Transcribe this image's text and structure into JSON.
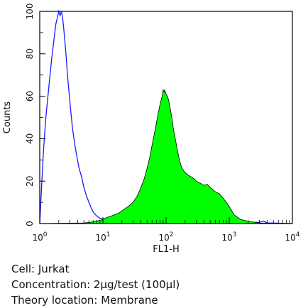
{
  "chart_data": {
    "type": "area",
    "xlabel": "FL1-H",
    "ylabel": "Counts",
    "x_scale": "log",
    "xlim": [
      1,
      10000
    ],
    "ylim": [
      0,
      100
    ],
    "x_tick_labels": [
      {
        "base": "10",
        "exp": "0",
        "value": 1
      },
      {
        "base": "10",
        "exp": "1",
        "value": 10
      },
      {
        "base": "10",
        "exp": "2",
        "value": 100
      },
      {
        "base": "10",
        "exp": "3",
        "value": 1000
      },
      {
        "base": "10",
        "exp": "4",
        "value": 10000
      }
    ],
    "y_ticks": [
      {
        "label": "0",
        "value": 0
      },
      {
        "label": "20",
        "value": 20
      },
      {
        "label": "40",
        "value": 40
      },
      {
        "label": "60",
        "value": 60
      },
      {
        "label": "80",
        "value": 80
      },
      {
        "label": "100",
        "value": 100
      }
    ],
    "grid": false,
    "series": [
      {
        "style": "outline",
        "color": "#1a1aff",
        "x": [
          1,
          1.08,
          1.15,
          1.25,
          1.4,
          1.55,
          1.7,
          1.8,
          1.9,
          2.0,
          2.1,
          2.2,
          2.3,
          2.4,
          2.5,
          2.6,
          2.75,
          2.9,
          3.1,
          3.3,
          3.6,
          3.9,
          4.2,
          4.6,
          5.0,
          5.5,
          6.0,
          6.6,
          7.2,
          8.0,
          9.0,
          10,
          12,
          15,
          20,
          30,
          50,
          100,
          200,
          500,
          1000,
          2000,
          3000,
          3500,
          4000,
          10000
        ],
        "y": [
          0,
          20,
          35,
          50,
          65,
          78,
          88,
          94,
          97,
          100,
          98,
          100,
          97,
          92,
          86,
          80,
          70,
          62,
          53,
          45,
          37,
          31,
          26,
          22,
          17,
          13,
          10,
          7,
          5,
          3.5,
          2.5,
          2,
          1.5,
          1,
          0.8,
          0.6,
          0.5,
          0.4,
          0.3,
          0.3,
          0.3,
          0.4,
          0.6,
          1.2,
          0.3,
          0
        ]
      },
      {
        "style": "filled",
        "color": "#00ff00",
        "x": [
          1,
          5,
          7,
          8,
          9,
          10,
          12,
          15,
          18,
          20,
          25,
          30,
          35,
          40,
          45,
          50,
          55,
          60,
          65,
          70,
          75,
          80,
          85,
          88,
          90,
          93,
          95,
          100,
          105,
          110,
          115,
          120,
          125,
          130,
          140,
          150,
          160,
          170,
          180,
          200,
          220,
          250,
          280,
          300,
          350,
          400,
          450,
          500,
          550,
          600,
          700,
          800,
          900,
          1000,
          1100,
          1200,
          1500,
          2000,
          3000,
          10000
        ],
        "y": [
          0,
          0.3,
          0.8,
          1.2,
          1.5,
          2,
          3,
          4,
          5,
          6,
          8,
          10,
          13,
          17,
          21,
          26,
          31,
          37,
          42,
          47,
          52,
          56,
          59,
          61,
          63,
          62,
          63,
          61,
          60,
          58,
          55,
          52,
          49,
          45,
          40,
          35,
          31,
          28,
          26,
          24,
          23,
          22,
          21,
          20,
          19,
          18,
          18.5,
          17,
          16,
          15,
          14,
          12,
          10,
          8,
          6,
          4,
          2,
          1,
          0.3,
          0
        ]
      }
    ]
  },
  "caption": {
    "line1": "Cell: Jurkat",
    "line2": "Concentration: 2μg/test (100μl)",
    "line3": "Theory location: Membrane"
  }
}
